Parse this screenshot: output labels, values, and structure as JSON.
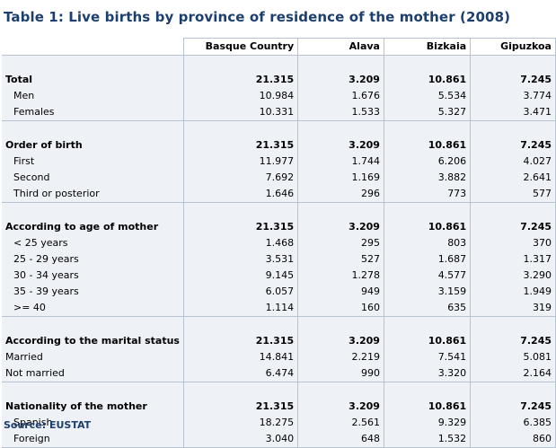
{
  "title": "Table 1: Live births by province of residence of the mother (2008)",
  "columns": [
    "",
    "Basque Country",
    "Alava",
    "Bizkaia",
    "Gipuzkoa"
  ],
  "sections": [
    {
      "label": "Total",
      "values": [
        "21.315",
        "3.209",
        "10.861",
        "7.245"
      ],
      "rows": [
        {
          "label": "Men",
          "values": [
            "10.984",
            "1.676",
            "5.534",
            "3.774"
          ]
        },
        {
          "label": "Females",
          "values": [
            "10.331",
            "1.533",
            "5.327",
            "3.471"
          ]
        }
      ]
    },
    {
      "label": "Order of birth",
      "values": [
        "21.315",
        "3.209",
        "10.861",
        "7.245"
      ],
      "rows": [
        {
          "label": "First",
          "values": [
            "11.977",
            "1.744",
            "6.206",
            "4.027"
          ]
        },
        {
          "label": "Second",
          "values": [
            "7.692",
            "1.169",
            "3.882",
            "2.641"
          ]
        },
        {
          "label": "Third or posterior",
          "values": [
            "1.646",
            "296",
            "773",
            "577"
          ]
        }
      ]
    },
    {
      "label": "According to age of mother",
      "values": [
        "21.315",
        "3.209",
        "10.861",
        "7.245"
      ],
      "rows": [
        {
          "label": "< 25 years",
          "values": [
            "1.468",
            "295",
            "803",
            "370"
          ]
        },
        {
          "label": "25 - 29 years",
          "values": [
            "3.531",
            "527",
            "1.687",
            "1.317"
          ]
        },
        {
          "label": "30 - 34 years",
          "values": [
            "9.145",
            "1.278",
            "4.577",
            "3.290"
          ]
        },
        {
          "label": "35 - 39 years",
          "values": [
            "6.057",
            "949",
            "3.159",
            "1.949"
          ]
        },
        {
          "label": ">= 40",
          "values": [
            "1.114",
            "160",
            "635",
            "319"
          ]
        }
      ]
    },
    {
      "label": "According to the marital status",
      "values": [
        "21.315",
        "3.209",
        "10.861",
        "7.245"
      ],
      "rows_no_indent": true,
      "rows": [
        {
          "label": "Married",
          "values": [
            "14.841",
            "2.219",
            "7.541",
            "5.081"
          ]
        },
        {
          "label": "Not married",
          "values": [
            "6.474",
            "990",
            "3.320",
            "2.164"
          ]
        }
      ]
    },
    {
      "label": "Nationality of the mother",
      "values": [
        "21.315",
        "3.209",
        "10.861",
        "7.245"
      ],
      "rows": [
        {
          "label": "Spanish",
          "values": [
            "18.275",
            "2.561",
            "9.329",
            "6.385"
          ]
        },
        {
          "label": "Foreign",
          "values": [
            "3.040",
            "648",
            "1.532",
            "860"
          ]
        }
      ]
    }
  ],
  "source": "Source: EUSTAT"
}
